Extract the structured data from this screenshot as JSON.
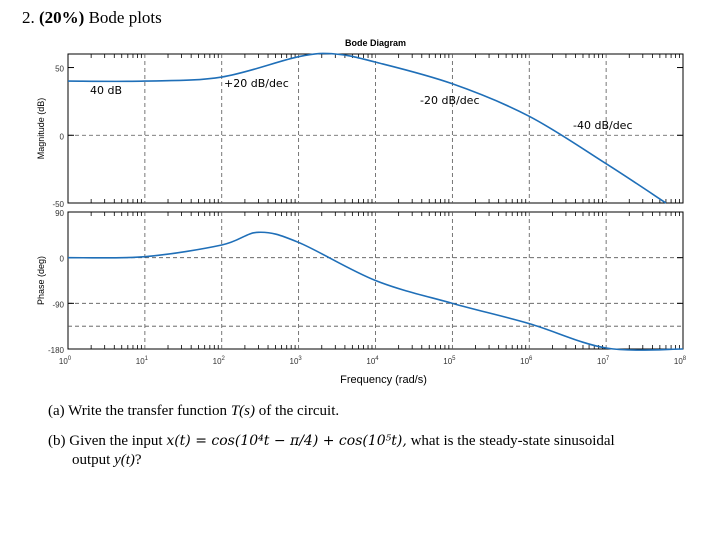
{
  "problem": {
    "number": "2.",
    "weight": "(20%)",
    "title": "Bode plots"
  },
  "chart_data": [
    {
      "type": "line",
      "title": "Bode Diagram",
      "ylabel": "Magnitude (dB)",
      "xscale": "log",
      "xlim": [
        1,
        100000000
      ],
      "ylim": [
        -50,
        60
      ],
      "yticks": [
        50,
        0,
        -50
      ],
      "ytick_labels": [
        "50",
        "0",
        "-50"
      ],
      "grid": true,
      "series": [
        {
          "x": [
            1,
            10,
            100,
            1000,
            3000,
            10000,
            100000,
            1000000,
            10000000,
            60000000
          ],
          "y": [
            40,
            40,
            43,
            58,
            60,
            54,
            38,
            14,
            -21,
            -51
          ]
        }
      ],
      "annotations": [
        "40 dB",
        "+20 dB/dec",
        "-20 dB/dec",
        "-40 dB/dec"
      ]
    },
    {
      "type": "line",
      "ylabel": "Phase (deg)",
      "xlabel": "Frequency (rad/s)",
      "xscale": "log",
      "xlim": [
        1,
        100000000
      ],
      "ylim": [
        -180,
        90
      ],
      "yticks": [
        90,
        0,
        -90,
        -180
      ],
      "ytick_labels": [
        "90",
        "0",
        "-90",
        "-180"
      ],
      "xtick_labels": [
        "10",
        "10",
        "10",
        "10",
        "10",
        "10",
        "10",
        "10",
        "10"
      ],
      "xtick_exponents": [
        "0",
        "1",
        "2",
        "3",
        "4",
        "5",
        "6",
        "7",
        "8"
      ],
      "grid": true,
      "series": [
        {
          "x": [
            1,
            10,
            100,
            300,
            1000,
            10000,
            100000,
            1000000,
            10000000,
            100000000
          ],
          "y": [
            0,
            2,
            25,
            50,
            30,
            -45,
            -90,
            -130,
            -178,
            -180
          ]
        }
      ]
    }
  ],
  "questions": {
    "a_label": "(a)",
    "a_text": "Write the transfer function",
    "a_italic": "T(s)",
    "a_tail": "of the circuit.",
    "b_label": "(b)",
    "b_text": "Given the input",
    "b_math": "x(t) = cos(10⁴t − π/4) + cos(10⁵t),",
    "b_tail": "what is the steady-state sinusoidal",
    "b_line2": "output",
    "b_italic": "y(t)",
    "b_end": "?"
  }
}
